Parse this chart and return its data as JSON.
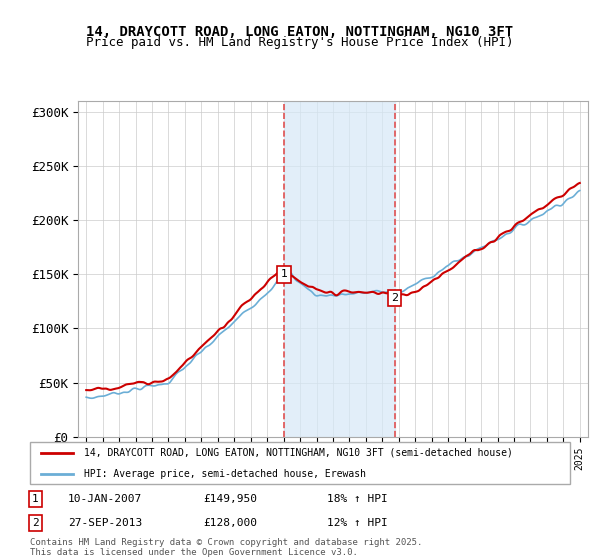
{
  "title1": "14, DRAYCOTT ROAD, LONG EATON, NOTTINGHAM, NG10 3FT",
  "title2": "Price paid vs. HM Land Registry's House Price Index (HPI)",
  "ylabel": "",
  "xlabel": "",
  "ylim": [
    0,
    310000
  ],
  "yticks": [
    0,
    50000,
    100000,
    150000,
    200000,
    250000,
    300000
  ],
  "ytick_labels": [
    "£0",
    "£50K",
    "£100K",
    "£150K",
    "£200K",
    "£250K",
    "£300K"
  ],
  "transaction1": {
    "date_num": 2007.04,
    "price": 149950,
    "label": "1",
    "hpi_pct": "18%"
  },
  "transaction2": {
    "date_num": 2013.74,
    "price": 128000,
    "label": "2",
    "hpi_pct": "12%"
  },
  "shade_color": "#d6e8f7",
  "vline_color": "#e05050",
  "marker_color_red": "#cc0000",
  "line_color_red": "#cc0000",
  "line_color_blue": "#6baed6",
  "legend_label_red": "14, DRAYCOTT ROAD, LONG EATON, NOTTINGHAM, NG10 3FT (semi-detached house)",
  "legend_label_blue": "HPI: Average price, semi-detached house, Erewash",
  "footer": "Contains HM Land Registry data © Crown copyright and database right 2025.\nThis data is licensed under the Open Government Licence v3.0.",
  "annotation1_date": "10-JAN-2007",
  "annotation1_price": "£149,950",
  "annotation1_hpi": "18% ↑ HPI",
  "annotation2_date": "27-SEP-2013",
  "annotation2_price": "£128,000",
  "annotation2_hpi": "12% ↑ HPI"
}
